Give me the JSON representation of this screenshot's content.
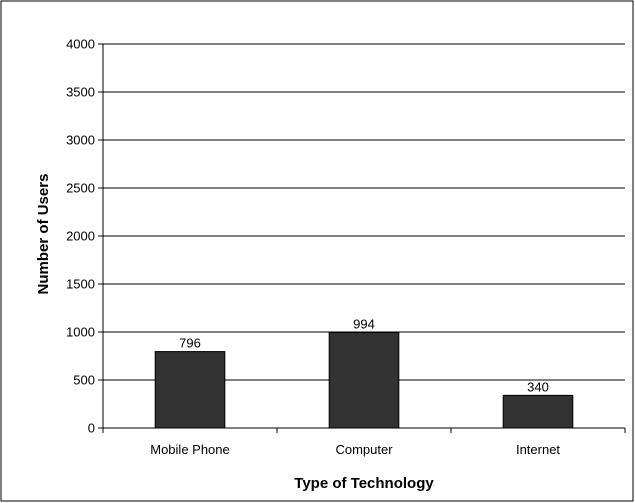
{
  "chart_data": {
    "type": "bar",
    "title": "",
    "xlabel": "Type of Technology",
    "ylabel": "Number of Users",
    "categories": [
      "Mobile Phone",
      "Computer",
      "Internet"
    ],
    "values": [
      796,
      994,
      340
    ],
    "ylim": [
      0,
      4000
    ],
    "yticks": [
      0,
      500,
      1000,
      1500,
      2000,
      2500,
      3000,
      3500,
      4000
    ],
    "grid": true,
    "legend": "none",
    "bar_color": "#333333",
    "data_labels": [
      "796",
      "994",
      "340"
    ]
  }
}
